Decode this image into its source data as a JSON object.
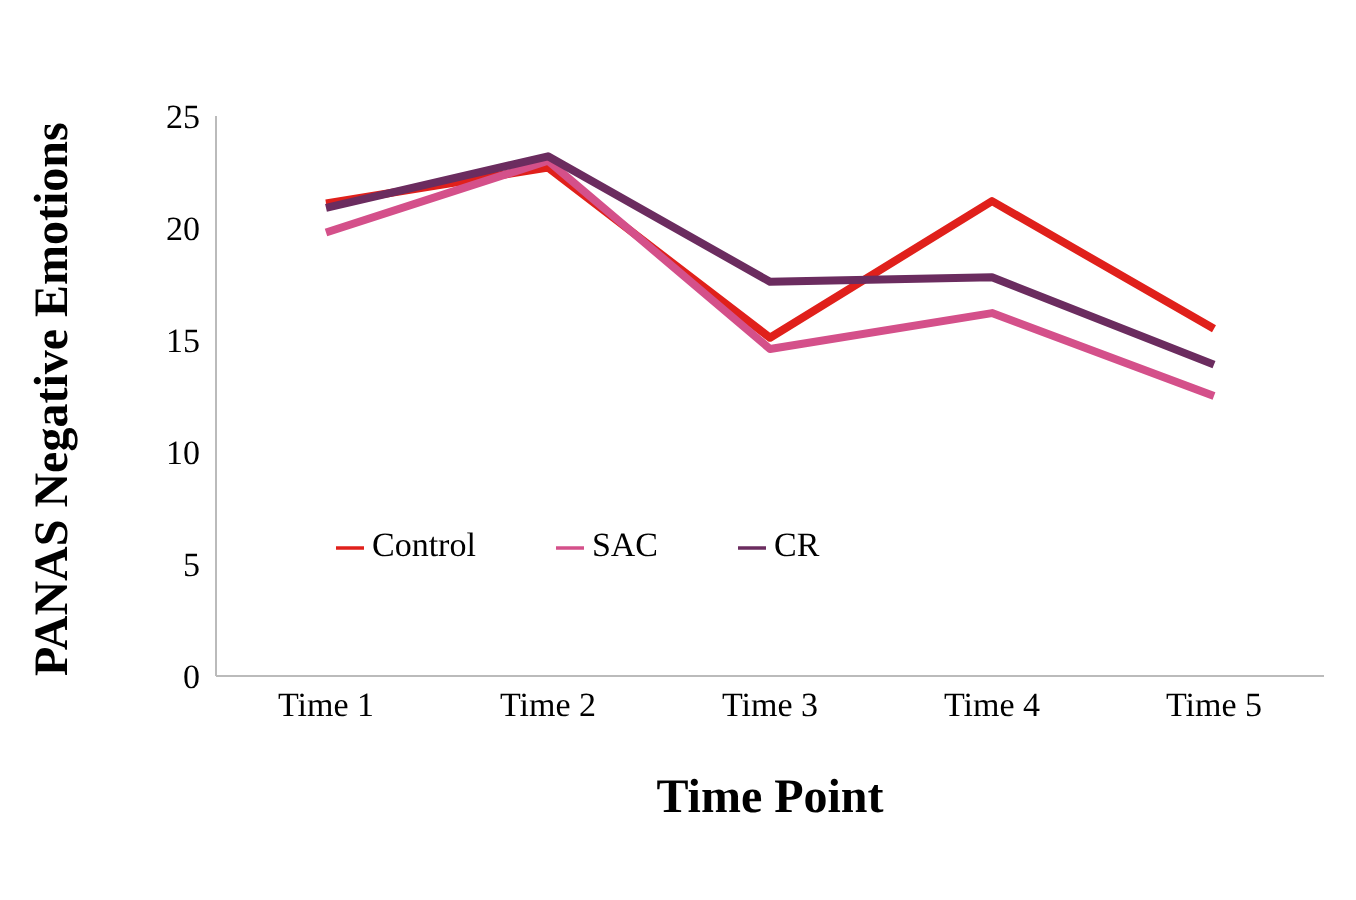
{
  "chart_data": {
    "type": "line",
    "xlabel": "Time Point",
    "ylabel": "PANAS Negative Emotions",
    "categories": [
      "Time 1",
      "Time 2",
      "Time 3",
      "Time 4",
      "Time 5"
    ],
    "series": [
      {
        "name": "Control",
        "color": "#e0201b",
        "values": [
          21.1,
          22.7,
          15.1,
          21.2,
          15.5
        ]
      },
      {
        "name": "SAC",
        "color": "#d4508a",
        "values": [
          19.8,
          23.0,
          14.6,
          16.2,
          12.5
        ]
      },
      {
        "name": "CR",
        "color": "#6b2c5f",
        "values": [
          20.9,
          23.2,
          17.6,
          17.8,
          13.9
        ]
      }
    ],
    "ylim": [
      0,
      25
    ],
    "yticks": [
      0,
      5,
      10,
      15,
      20,
      25
    ],
    "grid": false,
    "legend": "center",
    "marker": "none",
    "line_style": "solid"
  }
}
